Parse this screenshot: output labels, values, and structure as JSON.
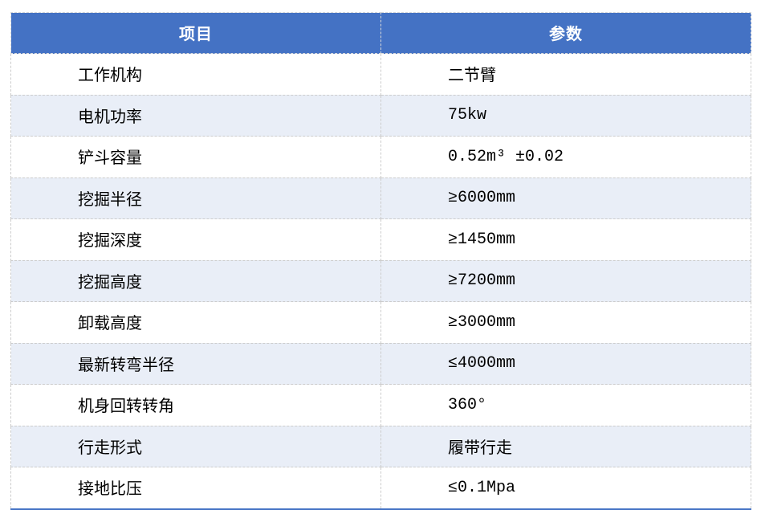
{
  "table": {
    "headers": [
      {
        "label": "项目"
      },
      {
        "label": "参数"
      }
    ],
    "rows": [
      {
        "item": "工作机构",
        "value": "二节臂"
      },
      {
        "item": "电机功率",
        "value": "75kw"
      },
      {
        "item": "铲斗容量",
        "value": "0.52m³ ±0.02"
      },
      {
        "item": "挖掘半径",
        "value": "≥6000mm"
      },
      {
        "item": "挖掘深度",
        "value": "≥1450mm"
      },
      {
        "item": "挖掘高度",
        "value": "≥7200mm"
      },
      {
        "item": "卸载高度",
        "value": "≥3000mm"
      },
      {
        "item": "最新转弯半径",
        "value": "≤4000mm"
      },
      {
        "item": "机身回转转角",
        "value": "360°"
      },
      {
        "item": "行走形式",
        "value": "履带行走"
      },
      {
        "item": "接地比压",
        "value": "≤0.1Mpa"
      }
    ],
    "colors": {
      "header_bg": "#4472c4",
      "header_text": "#ffffff",
      "band_bg": "#e9eef7",
      "border": "#cccccc",
      "bottom_rule": "#4472c4",
      "body_text": "#000000"
    }
  }
}
